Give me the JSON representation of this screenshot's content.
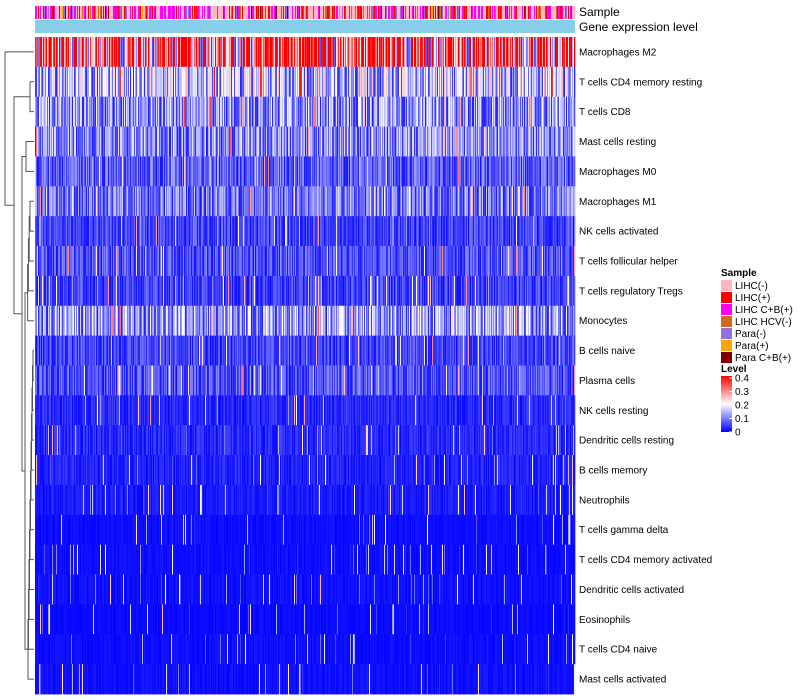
{
  "chart_data": {
    "type": "heatmap",
    "annotation_labels": [
      "Sample",
      "Gene expression level"
    ],
    "rows": [
      {
        "label": "Macrophages M2",
        "mean": 0.3
      },
      {
        "label": "T cells CD4 memory resting",
        "mean": 0.14
      },
      {
        "label": "T cells CD8",
        "mean": 0.11
      },
      {
        "label": "Mast cells resting",
        "mean": 0.1
      },
      {
        "label": "Macrophages M0",
        "mean": 0.07
      },
      {
        "label": "Macrophages M1",
        "mean": 0.09
      },
      {
        "label": "NK cells activated",
        "mean": 0.05
      },
      {
        "label": "T cells follicular helper",
        "mean": 0.06
      },
      {
        "label": "T cells regulatory  Tregs",
        "mean": 0.05
      },
      {
        "label": "Monocytes",
        "mean": 0.12
      },
      {
        "label": "B cells naive",
        "mean": 0.05
      },
      {
        "label": "Plasma cells",
        "mean": 0.06
      },
      {
        "label": "NK cells resting",
        "mean": 0.03
      },
      {
        "label": "Dendritic cells resting",
        "mean": 0.03
      },
      {
        "label": "B cells memory",
        "mean": 0.025
      },
      {
        "label": "Neutrophils",
        "mean": 0.02
      },
      {
        "label": "T cells gamma delta",
        "mean": 0.01
      },
      {
        "label": "T cells CD4 memory activated",
        "mean": 0.01
      },
      {
        "label": "Dendritic cells activated",
        "mean": 0.012
      },
      {
        "label": "Eosinophils",
        "mean": 0.008
      },
      {
        "label": "T cells CD4 naive",
        "mean": 0.01
      },
      {
        "label": "Mast cells activated",
        "mean": 0.012
      }
    ],
    "sample_legend": {
      "title": "Sample",
      "items": [
        {
          "label": "LIHC(-)",
          "color": "#FFB6C1"
        },
        {
          "label": "LIHC(+)",
          "color": "#FF0000"
        },
        {
          "label": "LIHC C+B(+)",
          "color": "#FF00FF"
        },
        {
          "label": "LIHC HCV(-)",
          "color": "#D2691E"
        },
        {
          "label": "Para(-)",
          "color": "#9370DB"
        },
        {
          "label": "Para(+)",
          "color": "#FFA500"
        },
        {
          "label": "Para C+B(+)",
          "color": "#800000"
        }
      ]
    },
    "level_legend": {
      "title": "Level",
      "ticks": [
        "0.4",
        "0.3",
        "0.2",
        "0.1",
        "0"
      ],
      "range": [
        0,
        0.4
      ],
      "colors": [
        "#0000FF",
        "#FFFFFF",
        "#FF0000"
      ]
    },
    "gene_expression_color": "#87CEEB"
  }
}
